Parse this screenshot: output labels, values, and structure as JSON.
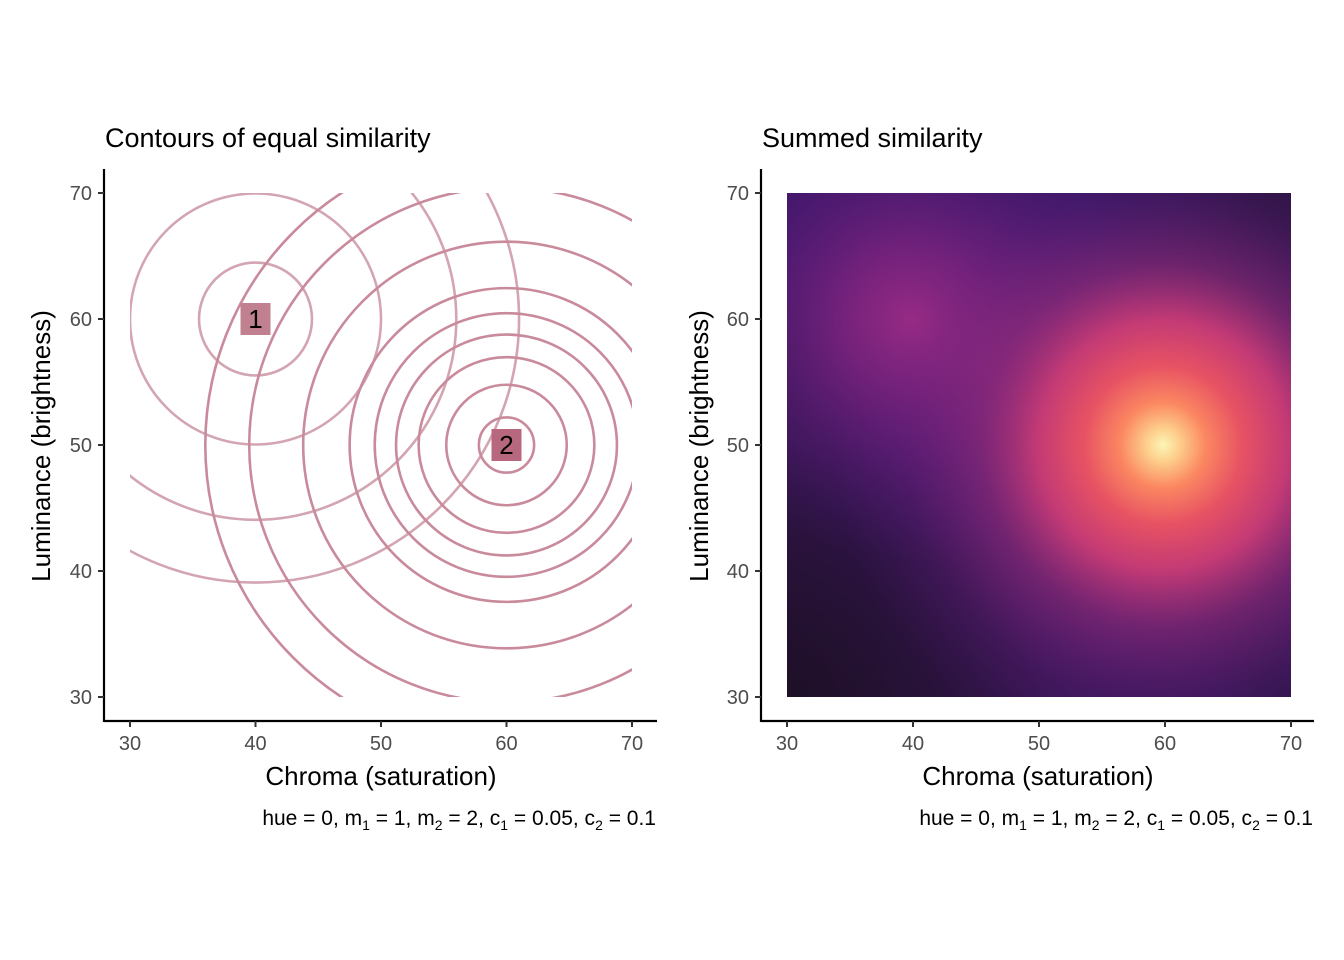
{
  "chart_data": [
    {
      "type": "contour",
      "title": "Contours of equal similarity",
      "xlabel": "Chroma (saturation)",
      "ylabel": "Luminance (brightness)",
      "caption": {
        "prefix": "hue = 0, m",
        "m1_sub": "1",
        "m1_val": " = 1, m",
        "m2_sub": "2",
        "m2_val": " = 2, c",
        "c1_sub": "1",
        "c1_val": " = 0.05, c",
        "c2_sub": "2",
        "c2_val": " = 0.1"
      },
      "xlim": [
        30,
        70
      ],
      "ylim": [
        30,
        70
      ],
      "x_ticks": [
        30,
        40,
        50,
        60,
        70
      ],
      "y_ticks": [
        30,
        40,
        50,
        60,
        70
      ],
      "grid": false,
      "points": [
        {
          "label": "1",
          "x": 40,
          "y": 60,
          "color": "#c0808f"
        },
        {
          "label": "2",
          "x": 60,
          "y": 50,
          "color": "#b8687e"
        }
      ],
      "contours": [
        {
          "center": "1",
          "radii": [
            4.5,
            10,
            16,
            21
          ],
          "color": "#d3a5b2"
        },
        {
          "center": "2",
          "radii": [
            2.2,
            4.8,
            7,
            8.8,
            10.5,
            12.5,
            16.2,
            20.5,
            24
          ],
          "color": "#c98a9b"
        }
      ]
    },
    {
      "type": "heatmap",
      "title": "Summed similarity",
      "xlabel": "Chroma (saturation)",
      "ylabel": "Luminance (brightness)",
      "caption": {
        "prefix": "hue = 0, m",
        "m1_sub": "1",
        "m1_val": " = 1, m",
        "m2_sub": "2",
        "m2_val": " = 2, c",
        "c1_sub": "1",
        "c1_val": " = 0.05, c",
        "c2_sub": "2",
        "c2_val": " = 0.1"
      },
      "xlim": [
        30,
        70
      ],
      "ylim": [
        30,
        70
      ],
      "x_ticks": [
        30,
        40,
        50,
        60,
        70
      ],
      "y_ticks": [
        30,
        40,
        50,
        60,
        70
      ],
      "grid": false,
      "colormap": "magma",
      "peaks": [
        {
          "x": 40,
          "y": 60,
          "weight": 1,
          "spread": 0.05
        },
        {
          "x": 60,
          "y": 50,
          "weight": 2,
          "spread": 0.1
        }
      ]
    }
  ]
}
